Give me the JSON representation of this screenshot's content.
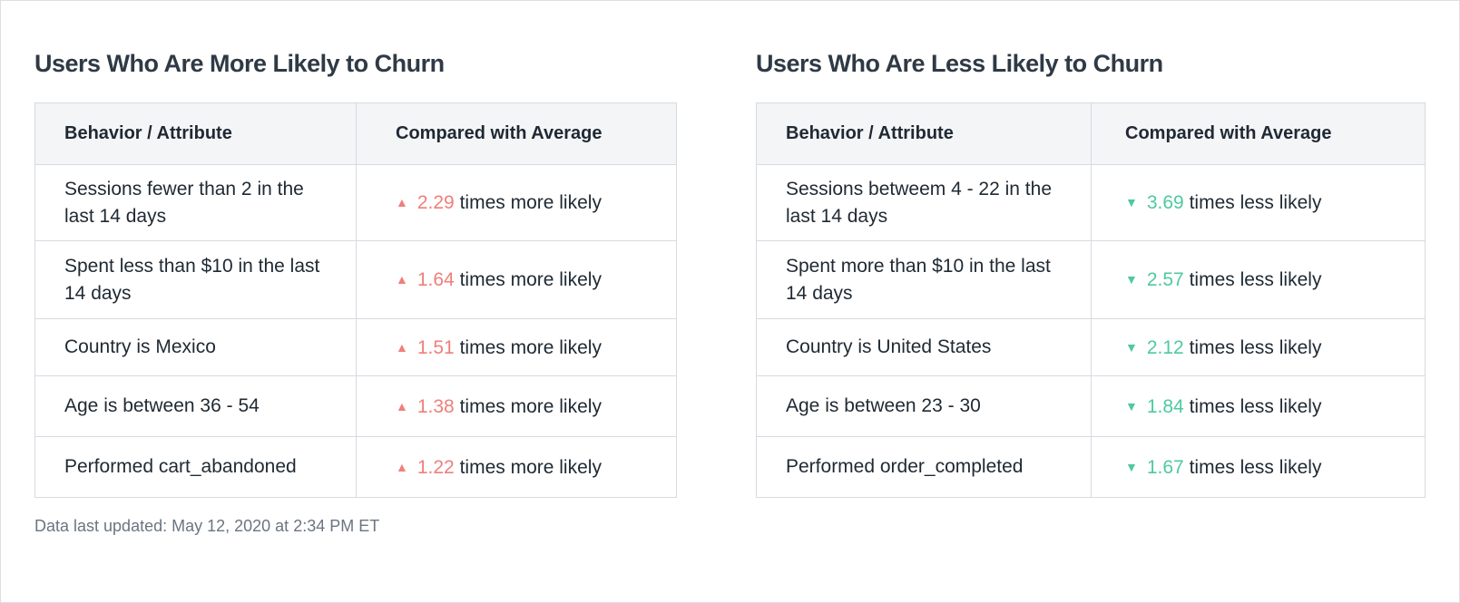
{
  "more_likely": {
    "title": "Users Who Are More Likely to Churn",
    "headers": [
      "Behavior / Attribute",
      "Compared with Average"
    ],
    "rows": [
      {
        "attribute": "Sessions fewer than 2 in the last 14 days",
        "value": "2.29",
        "suffix": "times more likely"
      },
      {
        "attribute": "Spent less than $10 in the last 14 days",
        "value": "1.64",
        "suffix": "times more likely"
      },
      {
        "attribute": "Country is Mexico",
        "value": "1.51",
        "suffix": "times more likely"
      },
      {
        "attribute": "Age is between 36 - 54",
        "value": "1.38",
        "suffix": "times more likely"
      },
      {
        "attribute": "Performed cart_abandoned",
        "value": "1.22",
        "suffix": "times more likely"
      }
    ],
    "indicator_icon": "triangle-up-icon",
    "accent_color": "#ef7f7a"
  },
  "less_likely": {
    "title": "Users Who Are Less Likely to Churn",
    "headers": [
      "Behavior / Attribute",
      "Compared with Average"
    ],
    "rows": [
      {
        "attribute": "Sessions betweem 4 - 22 in the last 14 days",
        "value": "3.69",
        "suffix": "times less likely"
      },
      {
        "attribute": "Spent more than $10 in the last 14 days",
        "value": "2.57",
        "suffix": "times less likely"
      },
      {
        "attribute": "Country is United States",
        "value": "2.12",
        "suffix": "times less likely"
      },
      {
        "attribute": "Age is between 23 - 30",
        "value": "1.84",
        "suffix": "times less likely"
      },
      {
        "attribute": "Performed order_completed",
        "value": "1.67",
        "suffix": "times less likely"
      }
    ],
    "indicator_icon": "triangle-down-icon",
    "accent_color": "#4fc9a0"
  },
  "footnote": "Data last updated: May 12, 2020 at 2:34 PM ET"
}
